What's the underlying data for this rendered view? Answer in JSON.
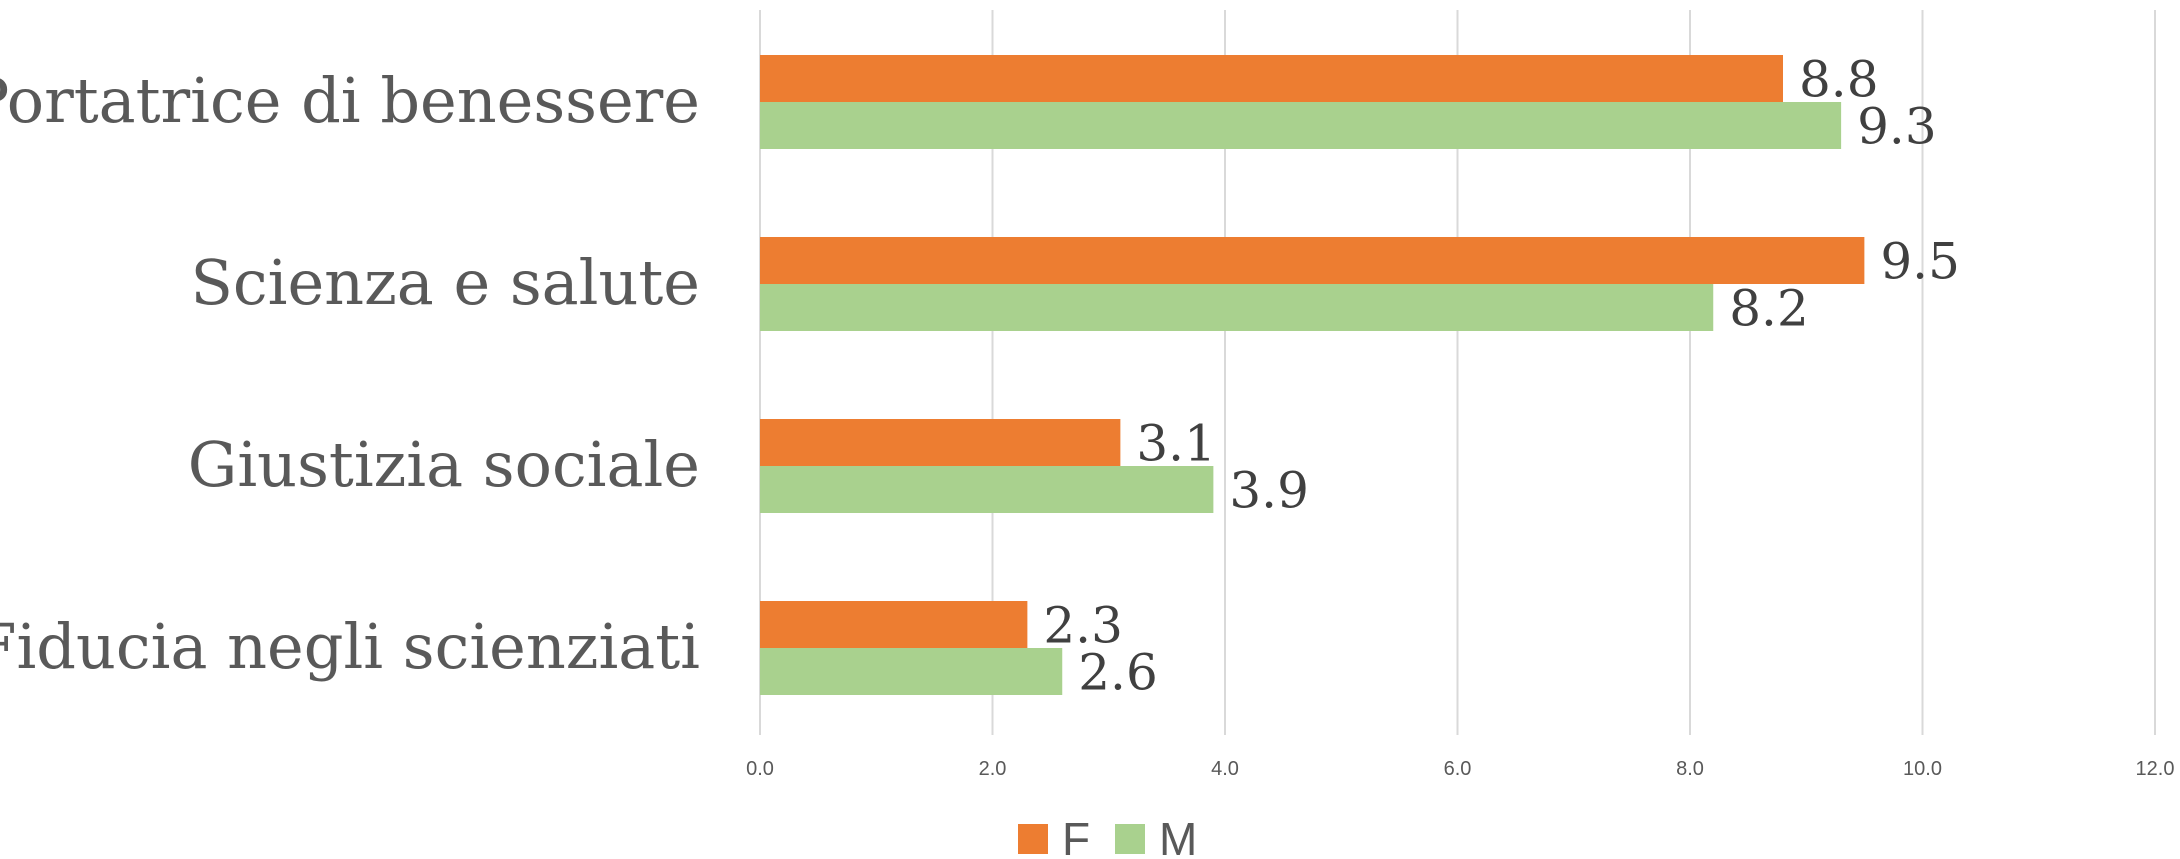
{
  "chart_data": {
    "type": "bar",
    "orientation": "horizontal",
    "categories": [
      "Portatrice di benessere",
      "Scienza e salute",
      "Giustizia sociale",
      "Fiducia negli scienziati"
    ],
    "series": [
      {
        "name": "F",
        "values": [
          8.8,
          9.5,
          3.1,
          2.3
        ],
        "color": "#ED7D31"
      },
      {
        "name": "M",
        "values": [
          9.3,
          8.2,
          3.9,
          2.6
        ],
        "color": "#A9D18E"
      }
    ],
    "xlim": [
      0,
      12
    ],
    "xticks": [
      "0.0",
      "2.0",
      "4.0",
      "6.0",
      "8.0",
      "10.0",
      "12.0"
    ],
    "xtick_values": [
      0,
      2,
      4,
      6,
      8,
      10,
      12
    ],
    "grid": true,
    "legend_position": "bottom"
  }
}
